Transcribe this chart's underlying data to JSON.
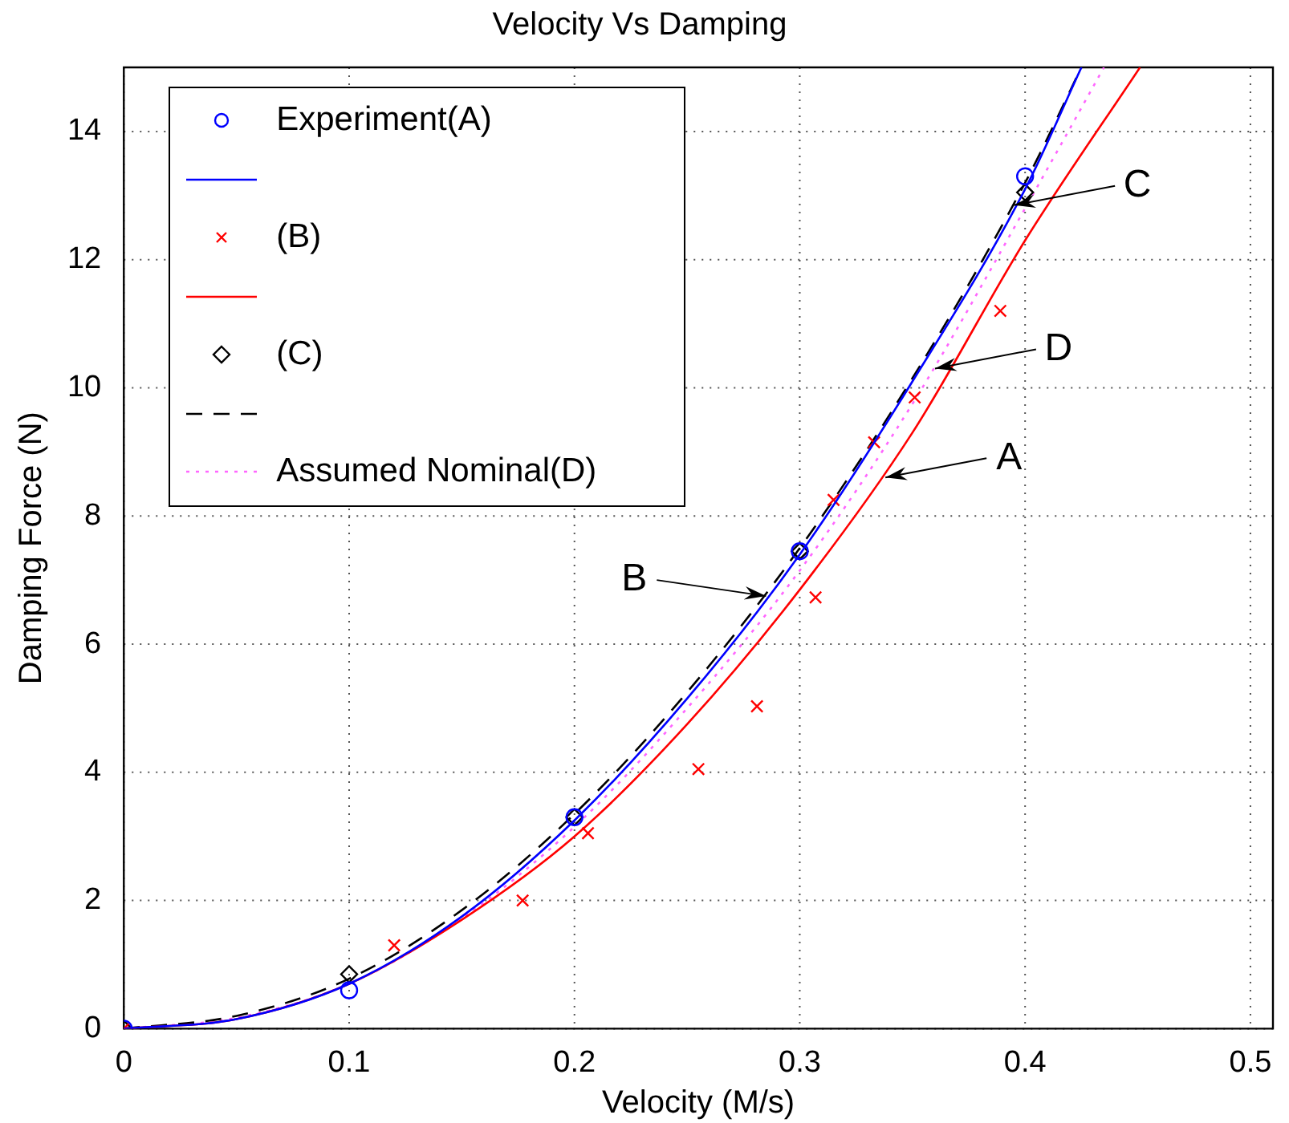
{
  "chart_data": {
    "type": "scatter",
    "title": "Velocity Vs Damping",
    "xlabel": "Velocity (M/s)",
    "ylabel": "Damping Force (N)",
    "xlim": [
      0,
      0.51
    ],
    "xticks": [
      0,
      0.1,
      0.2,
      0.3,
      0.4,
      0.5
    ],
    "ylim": [
      0,
      15
    ],
    "yticks": [
      0,
      2,
      4,
      6,
      8,
      10,
      12,
      14
    ],
    "grid": true,
    "legend": "top left",
    "series": [
      {
        "name": "Experiment(A)",
        "marker": "circle",
        "color": "#0000ff",
        "x": [
          0,
          0.1,
          0.2,
          0.3,
          0.4
        ],
        "values": [
          0,
          0.6,
          3.3,
          7.45,
          13.3
        ]
      },
      {
        "type": "line",
        "marker": "none",
        "line_style": "solid",
        "color": "#0000ff",
        "x": [
          0,
          0.05,
          0.1,
          0.15,
          0.2,
          0.25,
          0.3,
          0.35,
          0.4,
          0.425
        ],
        "values": [
          0,
          0.15,
          0.7,
          1.75,
          3.25,
          5.15,
          7.4,
          10.1,
          13.1,
          15
        ]
      },
      {
        "name": "(B)",
        "marker": "cross",
        "color": "#ff0000",
        "x": [
          0,
          0.12,
          0.177,
          0.206,
          0.255,
          0.281,
          0.307,
          0.315,
          0.333,
          0.351,
          0.389
        ],
        "values": [
          0,
          1.3,
          2.0,
          3.05,
          4.05,
          5.03,
          6.73,
          8.25,
          9.15,
          9.85,
          11.2
        ]
      },
      {
        "type": "line",
        "marker": "none",
        "line_style": "solid",
        "color": "#ff0000",
        "x": [
          0,
          0.05,
          0.1,
          0.15,
          0.2,
          0.25,
          0.3,
          0.35,
          0.4,
          0.451
        ],
        "values": [
          0,
          0.15,
          0.7,
          1.7,
          3.0,
          4.75,
          6.85,
          9.3,
          12.3,
          15
        ]
      },
      {
        "name": "(C)",
        "marker": "diamond",
        "color": "#000000",
        "x": [
          0,
          0.1,
          0.2,
          0.3,
          0.4
        ],
        "values": [
          0,
          0.85,
          3.3,
          7.45,
          13.05
        ]
      },
      {
        "type": "line",
        "marker": "none",
        "line_style": "dashed",
        "color": "#000000",
        "x": [
          0,
          0.05,
          0.1,
          0.15,
          0.2,
          0.25,
          0.3,
          0.35,
          0.4,
          0.425
        ],
        "values": [
          0,
          0.2,
          0.78,
          1.85,
          3.35,
          5.25,
          7.5,
          10.15,
          13.2,
          15
        ]
      },
      {
        "name": "Assumed Nominal(D)",
        "type": "line",
        "marker": "none",
        "line_style": "dotted",
        "color": "#ff66ff",
        "x": [
          0,
          0.05,
          0.1,
          0.15,
          0.2,
          0.25,
          0.3,
          0.35,
          0.4,
          0.435
        ],
        "values": [
          0,
          0.17,
          0.7,
          1.72,
          3.15,
          5.0,
          7.15,
          9.75,
          12.8,
          15
        ]
      }
    ],
    "annotations": [
      {
        "text": "C",
        "x": 0.395,
        "y": 12.85
      },
      {
        "text": "D",
        "x": 0.36,
        "y": 10.3
      },
      {
        "text": "A",
        "x": 0.338,
        "y": 8.6
      },
      {
        "text": "B",
        "x": 0.285,
        "y": 6.75
      }
    ]
  }
}
